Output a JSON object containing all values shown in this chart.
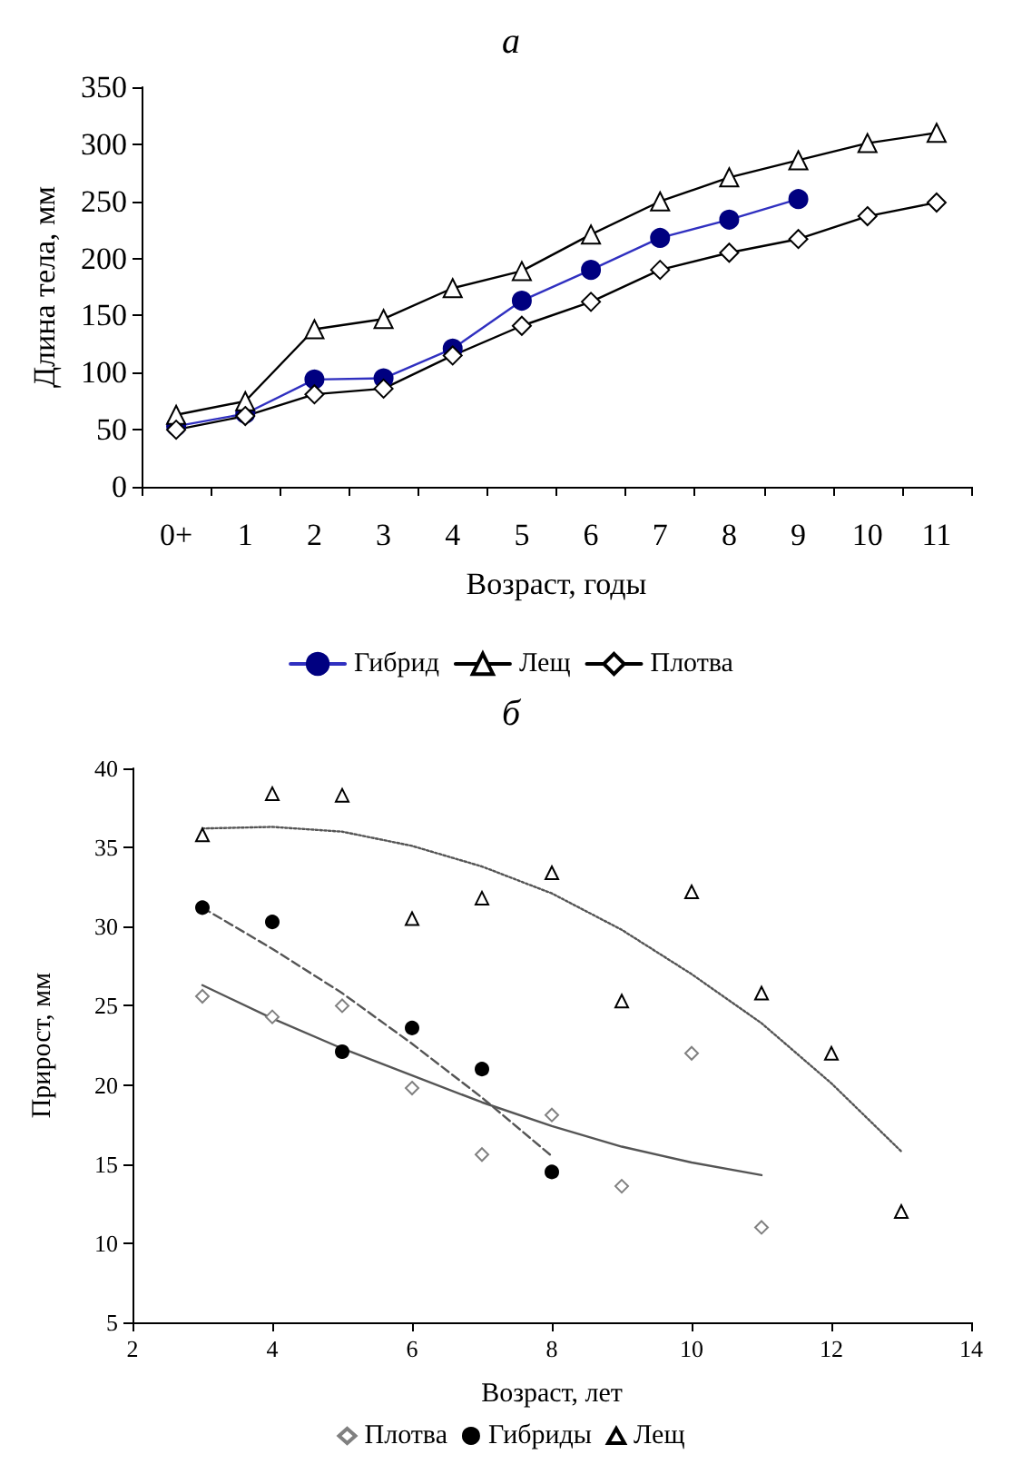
{
  "chart_data": [
    {
      "type": "line",
      "title": "а",
      "xlabel": "Возраст, годы",
      "ylabel": "Длина тела, мм",
      "categories": [
        "0+",
        "1",
        "2",
        "3",
        "4",
        "5",
        "6",
        "7",
        "8",
        "9",
        "10",
        "11"
      ],
      "ylim": [
        0,
        350
      ],
      "yticks": [
        0,
        50,
        100,
        150,
        200,
        250,
        300,
        350
      ],
      "grid": false,
      "legend": "bottom",
      "line_style": "solid",
      "series": [
        {
          "name": "Гибрид",
          "color": "#000080",
          "marker": "circle",
          "values": [
            53,
            64,
            94,
            95,
            121,
            163,
            190,
            218,
            234,
            252,
            null,
            null
          ]
        },
        {
          "name": "Лещ",
          "color": "#000000",
          "marker": "triangle",
          "values": [
            63,
            75,
            138,
            147,
            174,
            189,
            221,
            250,
            271,
            286,
            301,
            310
          ]
        },
        {
          "name": "Плотва",
          "color": "#000000",
          "marker": "diamond",
          "values": [
            50,
            62,
            81,
            86,
            115,
            141,
            162,
            190,
            205,
            217,
            237,
            249
          ]
        }
      ]
    },
    {
      "type": "scatter",
      "title": "б",
      "xlabel": "Возраст, лет",
      "ylabel": "Прирост, мм",
      "xlim": [
        2,
        14
      ],
      "xticks": [
        2,
        4,
        6,
        8,
        10,
        12,
        14
      ],
      "ylim": [
        5,
        40
      ],
      "yticks": [
        5,
        10,
        15,
        20,
        25,
        30,
        35,
        40
      ],
      "grid": false,
      "legend": "bottom",
      "series": [
        {
          "name": "Плотва",
          "color": "#808080",
          "marker": "diamond",
          "x": [
            3,
            4,
            5,
            6,
            7,
            8,
            9,
            10,
            11
          ],
          "values": [
            25.6,
            24.3,
            25.0,
            19.8,
            15.6,
            18.1,
            13.6,
            22.0,
            11.0
          ]
        },
        {
          "name": "Гибриды",
          "color": "#000000",
          "marker": "circle",
          "x": [
            3,
            4,
            5,
            6,
            7,
            8
          ],
          "values": [
            31.2,
            30.3,
            22.1,
            23.6,
            21.0,
            14.5
          ]
        },
        {
          "name": "Лещ",
          "color": "#000000",
          "marker": "triangle",
          "x": [
            3,
            4,
            5,
            6,
            7,
            8,
            9,
            10,
            11,
            12,
            13
          ],
          "values": [
            35.8,
            38.4,
            38.3,
            30.5,
            31.8,
            33.4,
            25.3,
            32.2,
            25.8,
            22.0,
            12.0
          ]
        },
        {
          "type": "line",
          "color": "#555555",
          "marker": "none",
          "line_style": "solid",
          "x": [
            3,
            4,
            5,
            6,
            7,
            8,
            9,
            10,
            11
          ],
          "values": [
            26.3,
            24.2,
            22.3,
            20.6,
            18.9,
            17.4,
            16.1,
            15.1,
            14.3
          ]
        },
        {
          "type": "line",
          "color": "#555555",
          "marker": "none",
          "line_style": "dashed",
          "x": [
            3,
            4,
            5,
            6,
            7,
            8
          ],
          "values": [
            31.2,
            28.6,
            25.8,
            22.6,
            19.2,
            15.5
          ]
        },
        {
          "type": "line",
          "color": "#555555",
          "marker": "none",
          "line_style": "dotted",
          "x": [
            3,
            4,
            5,
            6,
            7,
            8,
            9,
            10,
            11,
            12,
            13
          ],
          "values": [
            36.2,
            36.3,
            36.0,
            35.1,
            33.8,
            32.1,
            29.8,
            27.0,
            23.9,
            20.1,
            15.8
          ]
        }
      ]
    }
  ]
}
